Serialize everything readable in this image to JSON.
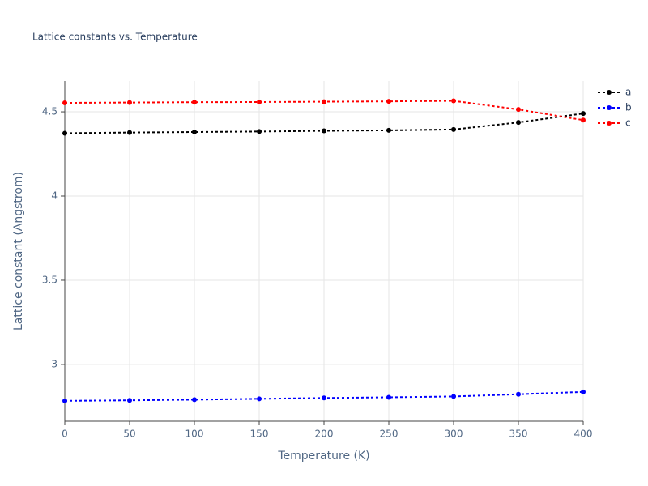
{
  "chart_data": {
    "type": "line",
    "title": "Lattice constants vs. Temperature",
    "x_label": "Temperature (K)",
    "y_label": "Lattice constant (Angstrom)",
    "x": [
      0,
      50,
      100,
      150,
      200,
      250,
      300,
      350,
      400
    ],
    "series": [
      {
        "name": "a",
        "color": "#000000",
        "values": [
          4.373,
          4.377,
          4.38,
          4.383,
          4.387,
          4.39,
          4.395,
          4.437,
          4.49
        ]
      },
      {
        "name": "b",
        "color": "#0000ff",
        "values": [
          2.784,
          2.787,
          2.791,
          2.796,
          2.801,
          2.805,
          2.81,
          2.823,
          2.837
        ]
      },
      {
        "name": "c",
        "color": "#ff0000",
        "values": [
          4.553,
          4.555,
          4.557,
          4.558,
          4.56,
          4.562,
          4.565,
          4.514,
          4.451
        ]
      }
    ],
    "xlim": [
      0,
      400
    ],
    "xticks": [
      0,
      50,
      100,
      150,
      200,
      250,
      300,
      350,
      400
    ],
    "ylim": [
      2.663,
      4.683
    ],
    "yticks": [
      3,
      3.5,
      4,
      4.5
    ],
    "grid": true
  }
}
